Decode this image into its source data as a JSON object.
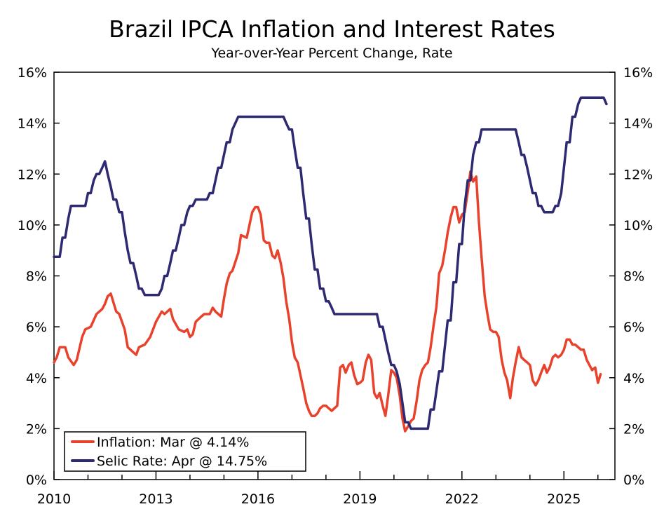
{
  "chart_data": {
    "type": "line",
    "title": "Brazil IPCA Inflation and Interest Rates",
    "subtitle": "Year-over-Year Percent Change, Rate",
    "xlabel": "",
    "ylabel": "",
    "x_ticks": [
      "2010",
      "2013",
      "2016",
      "2019",
      "2022",
      "2025"
    ],
    "xlim": [
      2010.0,
      2026.5
    ],
    "ylim": [
      0,
      16
    ],
    "y_ticks": [
      "0%",
      "2%",
      "4%",
      "6%",
      "8%",
      "10%",
      "12%",
      "14%",
      "16%"
    ],
    "grid": false,
    "legend_position": "bottom-left",
    "series": [
      {
        "name": "Inflation: Mar @ 4.14%",
        "color": "#e8412c",
        "points": [
          [
            2010.0,
            4.6
          ],
          [
            2010.08,
            4.8
          ],
          [
            2010.17,
            5.2
          ],
          [
            2010.33,
            5.2
          ],
          [
            2010.42,
            4.8
          ],
          [
            2010.58,
            4.5
          ],
          [
            2010.67,
            4.7
          ],
          [
            2010.83,
            5.6
          ],
          [
            2010.92,
            5.9
          ],
          [
            2011.08,
            6.0
          ],
          [
            2011.25,
            6.5
          ],
          [
            2011.42,
            6.7
          ],
          [
            2011.5,
            6.9
          ],
          [
            2011.58,
            7.2
          ],
          [
            2011.67,
            7.3
          ],
          [
            2011.83,
            6.6
          ],
          [
            2011.92,
            6.5
          ],
          [
            2012.08,
            5.9
          ],
          [
            2012.17,
            5.2
          ],
          [
            2012.33,
            5.0
          ],
          [
            2012.42,
            4.9
          ],
          [
            2012.5,
            5.2
          ],
          [
            2012.67,
            5.3
          ],
          [
            2012.83,
            5.6
          ],
          [
            2013.0,
            6.2
          ],
          [
            2013.17,
            6.6
          ],
          [
            2013.25,
            6.5
          ],
          [
            2013.42,
            6.7
          ],
          [
            2013.5,
            6.3
          ],
          [
            2013.67,
            5.9
          ],
          [
            2013.83,
            5.8
          ],
          [
            2013.92,
            5.9
          ],
          [
            2014.0,
            5.6
          ],
          [
            2014.08,
            5.7
          ],
          [
            2014.17,
            6.2
          ],
          [
            2014.33,
            6.4
          ],
          [
            2014.42,
            6.5
          ],
          [
            2014.58,
            6.5
          ],
          [
            2014.67,
            6.75
          ],
          [
            2014.75,
            6.6
          ],
          [
            2014.92,
            6.4
          ],
          [
            2015.0,
            7.1
          ],
          [
            2015.08,
            7.7
          ],
          [
            2015.17,
            8.1
          ],
          [
            2015.25,
            8.2
          ],
          [
            2015.42,
            8.9
          ],
          [
            2015.5,
            9.6
          ],
          [
            2015.67,
            9.5
          ],
          [
            2015.83,
            10.5
          ],
          [
            2015.92,
            10.7
          ],
          [
            2016.0,
            10.7
          ],
          [
            2016.08,
            10.4
          ],
          [
            2016.17,
            9.4
          ],
          [
            2016.25,
            9.3
          ],
          [
            2016.33,
            9.3
          ],
          [
            2016.42,
            8.8
          ],
          [
            2016.5,
            8.7
          ],
          [
            2016.58,
            9.0
          ],
          [
            2016.67,
            8.5
          ],
          [
            2016.75,
            7.9
          ],
          [
            2016.83,
            7.0
          ],
          [
            2016.92,
            6.3
          ],
          [
            2017.0,
            5.4
          ],
          [
            2017.08,
            4.8
          ],
          [
            2017.17,
            4.6
          ],
          [
            2017.25,
            4.1
          ],
          [
            2017.33,
            3.6
          ],
          [
            2017.42,
            3.0
          ],
          [
            2017.5,
            2.7
          ],
          [
            2017.58,
            2.5
          ],
          [
            2017.67,
            2.5
          ],
          [
            2017.75,
            2.6
          ],
          [
            2017.83,
            2.8
          ],
          [
            2017.92,
            2.9
          ],
          [
            2018.0,
            2.9
          ],
          [
            2018.08,
            2.8
          ],
          [
            2018.17,
            2.7
          ],
          [
            2018.25,
            2.8
          ],
          [
            2018.33,
            2.9
          ],
          [
            2018.42,
            4.4
          ],
          [
            2018.5,
            4.5
          ],
          [
            2018.58,
            4.2
          ],
          [
            2018.67,
            4.5
          ],
          [
            2018.75,
            4.6
          ],
          [
            2018.83,
            4.1
          ],
          [
            2018.92,
            3.75
          ],
          [
            2019.0,
            3.8
          ],
          [
            2019.08,
            3.9
          ],
          [
            2019.17,
            4.6
          ],
          [
            2019.25,
            4.9
          ],
          [
            2019.33,
            4.7
          ],
          [
            2019.42,
            3.4
          ],
          [
            2019.5,
            3.2
          ],
          [
            2019.58,
            3.4
          ],
          [
            2019.67,
            2.9
          ],
          [
            2019.75,
            2.5
          ],
          [
            2019.83,
            3.3
          ],
          [
            2019.92,
            4.3
          ],
          [
            2020.0,
            4.2
          ],
          [
            2020.08,
            4.0
          ],
          [
            2020.17,
            3.3
          ],
          [
            2020.25,
            2.4
          ],
          [
            2020.33,
            1.9
          ],
          [
            2020.42,
            2.1
          ],
          [
            2020.5,
            2.3
          ],
          [
            2020.58,
            2.4
          ],
          [
            2020.67,
            3.1
          ],
          [
            2020.75,
            3.9
          ],
          [
            2020.83,
            4.3
          ],
          [
            2020.92,
            4.5
          ],
          [
            2021.0,
            4.6
          ],
          [
            2021.08,
            5.2
          ],
          [
            2021.17,
            6.1
          ],
          [
            2021.25,
            6.8
          ],
          [
            2021.33,
            8.1
          ],
          [
            2021.42,
            8.4
          ],
          [
            2021.5,
            9.0
          ],
          [
            2021.58,
            9.7
          ],
          [
            2021.67,
            10.3
          ],
          [
            2021.75,
            10.7
          ],
          [
            2021.83,
            10.7
          ],
          [
            2021.92,
            10.1
          ],
          [
            2022.0,
            10.4
          ],
          [
            2022.08,
            10.5
          ],
          [
            2022.17,
            11.3
          ],
          [
            2022.25,
            12.1
          ],
          [
            2022.33,
            11.7
          ],
          [
            2022.42,
            11.9
          ],
          [
            2022.5,
            10.1
          ],
          [
            2022.58,
            8.7
          ],
          [
            2022.67,
            7.2
          ],
          [
            2022.75,
            6.5
          ],
          [
            2022.83,
            5.9
          ],
          [
            2022.92,
            5.8
          ],
          [
            2023.0,
            5.8
          ],
          [
            2023.08,
            5.6
          ],
          [
            2023.17,
            4.7
          ],
          [
            2023.25,
            4.2
          ],
          [
            2023.33,
            3.9
          ],
          [
            2023.42,
            3.2
          ],
          [
            2023.5,
            4.0
          ],
          [
            2023.58,
            4.6
          ],
          [
            2023.67,
            5.2
          ],
          [
            2023.75,
            4.8
          ],
          [
            2023.83,
            4.7
          ],
          [
            2023.92,
            4.6
          ],
          [
            2024.0,
            4.5
          ],
          [
            2024.08,
            3.9
          ],
          [
            2024.17,
            3.7
          ],
          [
            2024.25,
            3.9
          ],
          [
            2024.33,
            4.2
          ],
          [
            2024.42,
            4.5
          ],
          [
            2024.5,
            4.2
          ],
          [
            2024.58,
            4.4
          ],
          [
            2024.67,
            4.8
          ],
          [
            2024.75,
            4.9
          ],
          [
            2024.83,
            4.8
          ],
          [
            2024.92,
            4.9
          ],
          [
            2025.0,
            5.1
          ],
          [
            2025.08,
            5.5
          ],
          [
            2025.17,
            5.5
          ],
          [
            2025.25,
            5.3
          ],
          [
            2025.33,
            5.3
          ],
          [
            2025.42,
            5.2
          ],
          [
            2025.5,
            5.1
          ],
          [
            2025.58,
            5.1
          ],
          [
            2025.67,
            4.7
          ],
          [
            2025.75,
            4.5
          ],
          [
            2025.83,
            4.3
          ],
          [
            2025.92,
            4.4
          ],
          [
            2026.0,
            3.8
          ],
          [
            2026.08,
            4.14
          ]
        ]
      },
      {
        "name": "Selic Rate: Apr @ 14.75%",
        "color": "#2e2a72",
        "points": [
          [
            2010.0,
            8.75
          ],
          [
            2010.17,
            8.75
          ],
          [
            2010.25,
            9.5
          ],
          [
            2010.33,
            9.5
          ],
          [
            2010.42,
            10.25
          ],
          [
            2010.5,
            10.75
          ],
          [
            2010.92,
            10.75
          ],
          [
            2011.0,
            11.25
          ],
          [
            2011.08,
            11.25
          ],
          [
            2011.17,
            11.75
          ],
          [
            2011.25,
            12.0
          ],
          [
            2011.33,
            12.0
          ],
          [
            2011.42,
            12.25
          ],
          [
            2011.5,
            12.5
          ],
          [
            2011.58,
            12.0
          ],
          [
            2011.67,
            11.5
          ],
          [
            2011.75,
            11.0
          ],
          [
            2011.83,
            11.0
          ],
          [
            2011.92,
            10.5
          ],
          [
            2012.0,
            10.5
          ],
          [
            2012.08,
            9.75
          ],
          [
            2012.17,
            9.0
          ],
          [
            2012.25,
            8.5
          ],
          [
            2012.33,
            8.5
          ],
          [
            2012.42,
            8.0
          ],
          [
            2012.5,
            7.5
          ],
          [
            2012.58,
            7.5
          ],
          [
            2012.67,
            7.25
          ],
          [
            2013.08,
            7.25
          ],
          [
            2013.17,
            7.5
          ],
          [
            2013.25,
            8.0
          ],
          [
            2013.33,
            8.0
          ],
          [
            2013.42,
            8.5
          ],
          [
            2013.5,
            9.0
          ],
          [
            2013.58,
            9.0
          ],
          [
            2013.67,
            9.5
          ],
          [
            2013.75,
            10.0
          ],
          [
            2013.83,
            10.0
          ],
          [
            2013.92,
            10.5
          ],
          [
            2014.0,
            10.75
          ],
          [
            2014.08,
            10.75
          ],
          [
            2014.17,
            11.0
          ],
          [
            2014.5,
            11.0
          ],
          [
            2014.58,
            11.25
          ],
          [
            2014.67,
            11.25
          ],
          [
            2014.75,
            11.75
          ],
          [
            2014.83,
            12.25
          ],
          [
            2014.92,
            12.25
          ],
          [
            2015.0,
            12.75
          ],
          [
            2015.08,
            13.25
          ],
          [
            2015.17,
            13.25
          ],
          [
            2015.25,
            13.75
          ],
          [
            2015.42,
            14.25
          ],
          [
            2016.75,
            14.25
          ],
          [
            2016.83,
            14.0
          ],
          [
            2016.92,
            13.75
          ],
          [
            2017.0,
            13.75
          ],
          [
            2017.08,
            13.0
          ],
          [
            2017.17,
            12.25
          ],
          [
            2017.25,
            12.25
          ],
          [
            2017.33,
            11.25
          ],
          [
            2017.42,
            10.25
          ],
          [
            2017.5,
            10.25
          ],
          [
            2017.58,
            9.25
          ],
          [
            2017.67,
            8.25
          ],
          [
            2017.75,
            8.25
          ],
          [
            2017.83,
            7.5
          ],
          [
            2017.92,
            7.5
          ],
          [
            2018.0,
            7.0
          ],
          [
            2018.08,
            7.0
          ],
          [
            2018.17,
            6.75
          ],
          [
            2018.25,
            6.5
          ],
          [
            2019.42,
            6.5
          ],
          [
            2019.5,
            6.5
          ],
          [
            2019.58,
            6.0
          ],
          [
            2019.67,
            6.0
          ],
          [
            2019.75,
            5.5
          ],
          [
            2019.83,
            5.0
          ],
          [
            2019.92,
            4.5
          ],
          [
            2020.0,
            4.5
          ],
          [
            2020.08,
            4.25
          ],
          [
            2020.17,
            3.75
          ],
          [
            2020.25,
            3.0
          ],
          [
            2020.33,
            2.25
          ],
          [
            2020.42,
            2.25
          ],
          [
            2020.5,
            2.0
          ],
          [
            2021.0,
            2.0
          ],
          [
            2021.08,
            2.75
          ],
          [
            2021.17,
            2.75
          ],
          [
            2021.25,
            3.5
          ],
          [
            2021.33,
            4.25
          ],
          [
            2021.42,
            4.25
          ],
          [
            2021.5,
            5.25
          ],
          [
            2021.58,
            6.25
          ],
          [
            2021.67,
            6.25
          ],
          [
            2021.75,
            7.75
          ],
          [
            2021.83,
            7.75
          ],
          [
            2021.92,
            9.25
          ],
          [
            2022.0,
            9.25
          ],
          [
            2022.08,
            10.75
          ],
          [
            2022.17,
            11.75
          ],
          [
            2022.25,
            11.75
          ],
          [
            2022.33,
            12.75
          ],
          [
            2022.42,
            13.25
          ],
          [
            2022.5,
            13.25
          ],
          [
            2022.58,
            13.75
          ],
          [
            2023.58,
            13.75
          ],
          [
            2023.67,
            13.25
          ],
          [
            2023.75,
            12.75
          ],
          [
            2023.83,
            12.75
          ],
          [
            2023.92,
            12.25
          ],
          [
            2024.0,
            11.75
          ],
          [
            2024.08,
            11.25
          ],
          [
            2024.17,
            11.25
          ],
          [
            2024.25,
            10.75
          ],
          [
            2024.33,
            10.75
          ],
          [
            2024.42,
            10.5
          ],
          [
            2024.67,
            10.5
          ],
          [
            2024.75,
            10.75
          ],
          [
            2024.83,
            10.75
          ],
          [
            2024.92,
            11.25
          ],
          [
            2025.0,
            12.25
          ],
          [
            2025.08,
            13.25
          ],
          [
            2025.17,
            13.25
          ],
          [
            2025.25,
            14.25
          ],
          [
            2025.33,
            14.25
          ],
          [
            2025.42,
            14.75
          ],
          [
            2025.5,
            15.0
          ],
          [
            2026.17,
            15.0
          ],
          [
            2026.25,
            14.75
          ]
        ]
      }
    ]
  }
}
